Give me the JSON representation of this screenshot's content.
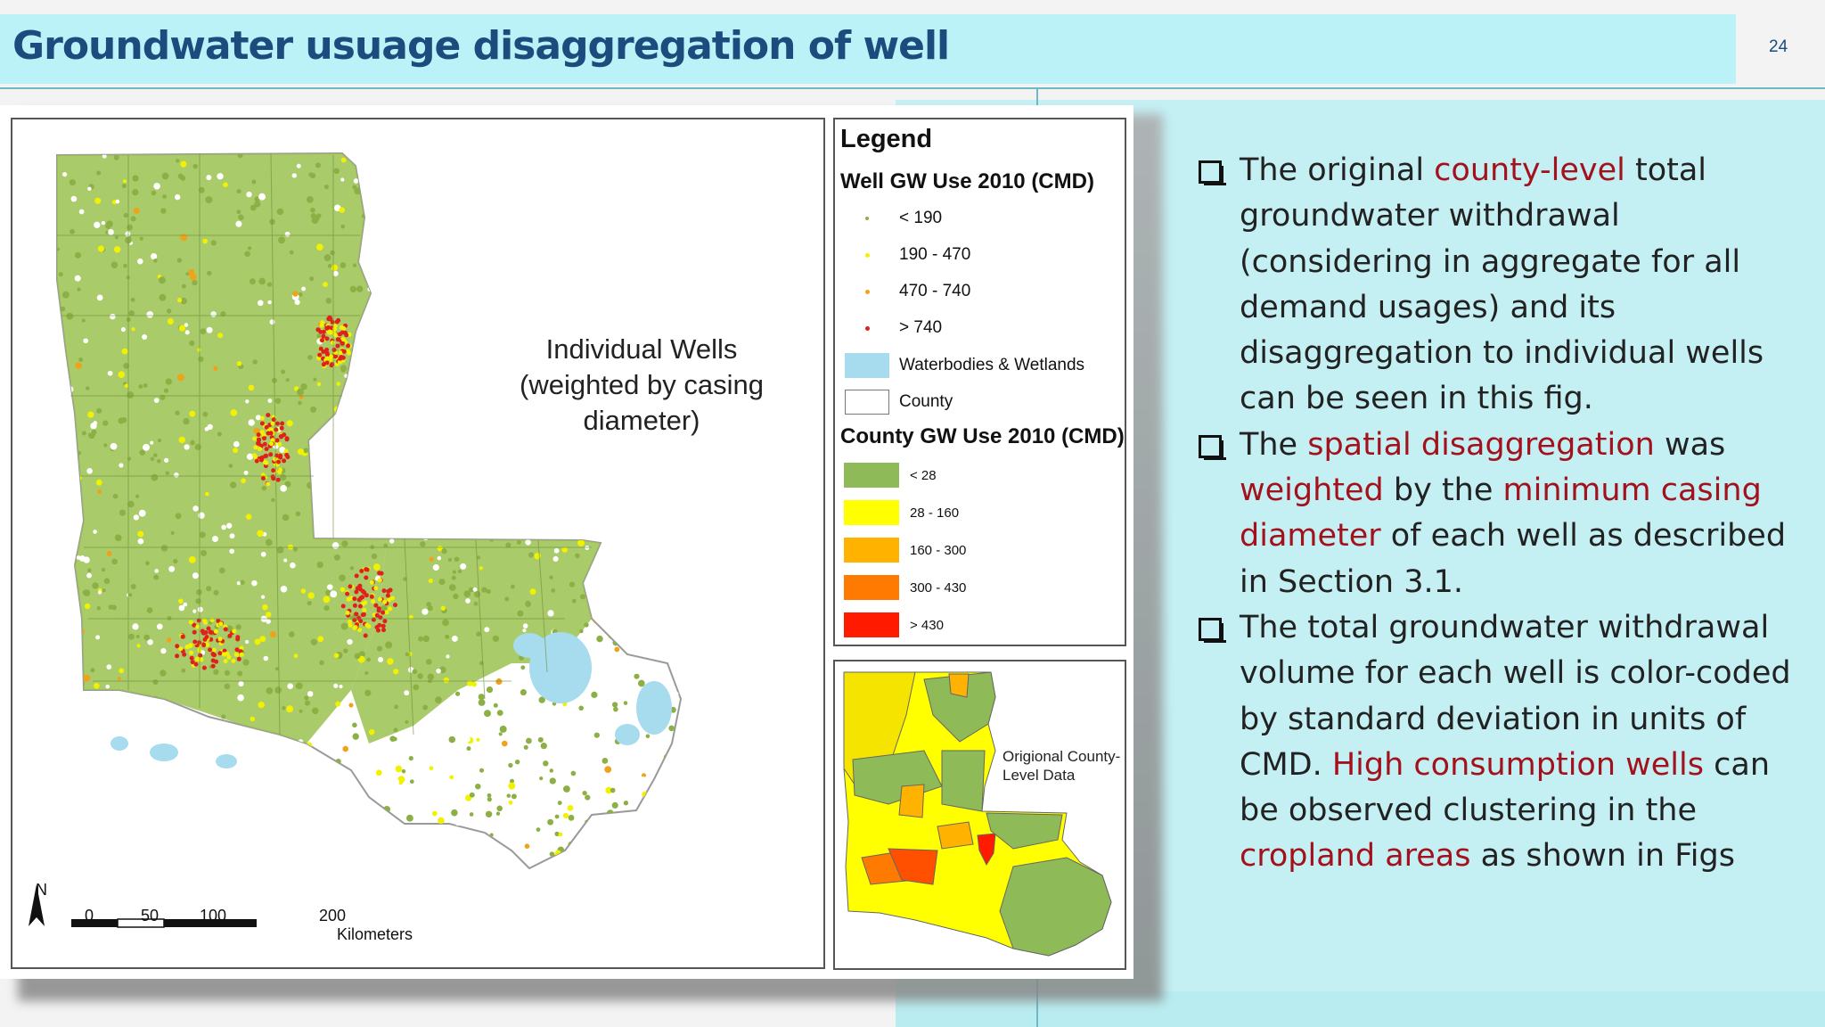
{
  "slide": {
    "title": "Groundwater usuage disaggregation of well",
    "page_number": "24"
  },
  "figure": {
    "map_label_line1": "Individual Wells",
    "map_label_line2": "(weighted by casing diameter)",
    "north_label": "N",
    "scale": {
      "t0": "0",
      "t50": "50",
      "t100": "100",
      "t200": "200",
      "unit": "Kilometers"
    },
    "inset_label_line1": "Origional County-",
    "inset_label_line2": "Level Data",
    "legend": {
      "title": "Legend",
      "well_heading": "Well GW Use 2010 (CMD)",
      "well_classes": [
        {
          "label": "< 190",
          "color": "#8db046"
        },
        {
          "label": "190 - 470",
          "color": "#f2f200"
        },
        {
          "label": "470 - 740",
          "color": "#f0a21a"
        },
        {
          "label": "> 740",
          "color": "#e0201b"
        }
      ],
      "waterbodies_label": "Waterbodies & Wetlands",
      "waterbodies_color": "#a7dbee",
      "county_label": "County",
      "county_heading": "County GW Use 2010 (CMD)",
      "county_classes": [
        {
          "label": "< 28",
          "color": "#8fba58"
        },
        {
          "label": "28 - 160",
          "color": "#ffff00"
        },
        {
          "label": "160 - 300",
          "color": "#ffb300"
        },
        {
          "label": "300 - 430",
          "color": "#ff7a00"
        },
        {
          "label": "> 430",
          "color": "#ff1a00"
        }
      ]
    }
  },
  "bullets": [
    {
      "segments": [
        {
          "text": "The original ",
          "red": false
        },
        {
          "text": "county-level",
          "red": true
        },
        {
          "text": " total groundwater withdrawal (considering in aggregate for all demand usages) and its disaggregation to individual wells can be seen in this fig.",
          "red": false
        }
      ]
    },
    {
      "segments": [
        {
          "text": "The ",
          "red": false
        },
        {
          "text": "spatial disaggregation",
          "red": true
        },
        {
          "text": " was ",
          "red": false
        },
        {
          "text": "weighted",
          "red": true
        },
        {
          "text": " by the ",
          "red": false
        },
        {
          "text": "minimum casing diameter",
          "red": true
        },
        {
          "text": " of each well as described in Section 3.1.",
          "red": false
        }
      ]
    },
    {
      "segments": [
        {
          "text": "The total groundwater withdrawal volume for each well is color-coded by standard deviation in units of CMD. ",
          "red": false
        },
        {
          "text": "High consumption wells",
          "red": true
        },
        {
          "text": " can be observed clustering in the ",
          "red": false
        },
        {
          "text": "cropland areas",
          "red": true
        },
        {
          "text": " as shown in Figs",
          "red": false
        }
      ]
    }
  ]
}
